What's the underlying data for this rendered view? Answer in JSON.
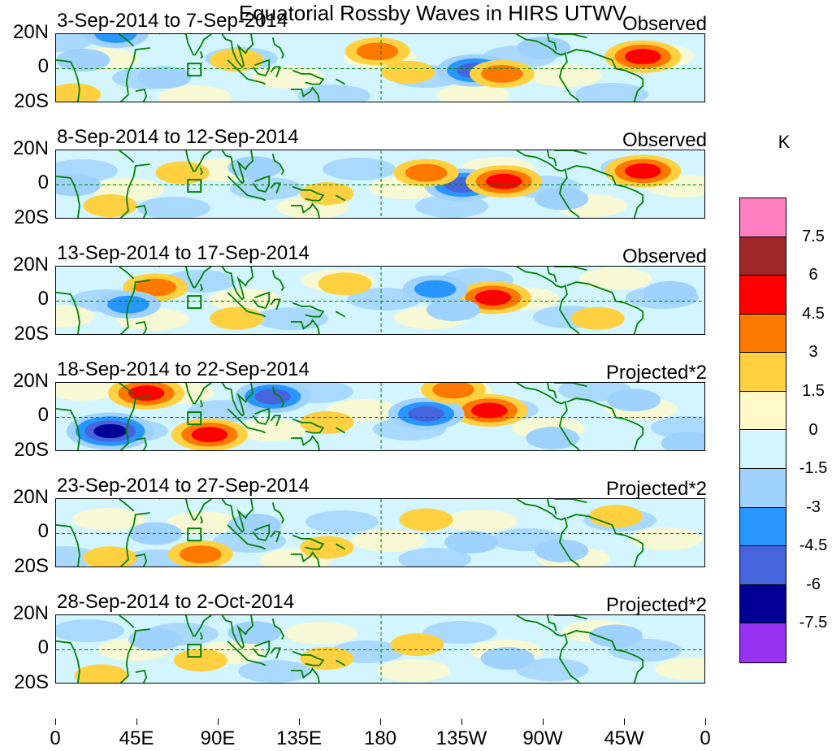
{
  "title": "Equatorial Rossby Waves in HIRS UTWV",
  "panels": [
    {
      "date": "3-Sep-2014 to 7-Sep-2014",
      "type": "Observed",
      "anomalies": [
        {
          "lon": 178,
          "lat": 10,
          "v": 3
        },
        {
          "lon": -128,
          "lat": -1,
          "v": -4.5
        },
        {
          "lon": -113,
          "lat": -3,
          "v": 3
        },
        {
          "lon": -35,
          "lat": 7,
          "v": 4.5
        },
        {
          "lon": 33,
          "lat": 20,
          "v": -3
        },
        {
          "lon": 10,
          "lat": -15,
          "v": 1.5
        },
        {
          "lon": 15,
          "lat": 5,
          "v": -1.5
        },
        {
          "lon": 100,
          "lat": 5,
          "v": 1.5
        },
        {
          "lon": -165,
          "lat": -2,
          "v": 1.5
        },
        {
          "lon": -90,
          "lat": 12,
          "v": -1.5
        },
        {
          "lon": 60,
          "lat": -5,
          "v": -1.5
        }
      ]
    },
    {
      "date": "8-Sep-2014 to 12-Sep-2014",
      "type": "Observed",
      "anomalies": [
        {
          "lon": -135,
          "lat": 0,
          "v": -4.5
        },
        {
          "lon": -112,
          "lat": 2,
          "v": 4.5
        },
        {
          "lon": -155,
          "lat": 7,
          "v": 3
        },
        {
          "lon": -35,
          "lat": 8,
          "v": 4.5
        },
        {
          "lon": 70,
          "lat": 7,
          "v": 1.5
        },
        {
          "lon": 30,
          "lat": -12,
          "v": 1.5
        },
        {
          "lon": 150,
          "lat": -5,
          "v": 1.5
        },
        {
          "lon": -80,
          "lat": -8,
          "v": -1.5
        },
        {
          "lon": 10,
          "lat": 0,
          "v": -1.5
        },
        {
          "lon": 110,
          "lat": 10,
          "v": -1.5
        }
      ]
    },
    {
      "date": "13-Sep-2014 to 17-Sep-2014",
      "type": "Observed",
      "anomalies": [
        {
          "lon": -118,
          "lat": 2,
          "v": 4.5
        },
        {
          "lon": 55,
          "lat": 8,
          "v": 3
        },
        {
          "lon": 40,
          "lat": -2,
          "v": -3
        },
        {
          "lon": -150,
          "lat": 7,
          "v": -3
        },
        {
          "lon": -140,
          "lat": -5,
          "v": -1.5
        },
        {
          "lon": 160,
          "lat": 10,
          "v": 1.5
        },
        {
          "lon": 100,
          "lat": -10,
          "v": 1.5
        },
        {
          "lon": -60,
          "lat": -10,
          "v": 1.5
        },
        {
          "lon": -20,
          "lat": 5,
          "v": -1.5
        }
      ]
    },
    {
      "date": "18-Sep-2014 to 22-Sep-2014",
      "type": "Projected*2",
      "anomalies": [
        {
          "lon": 50,
          "lat": 14,
          "v": 4.5
        },
        {
          "lon": 30,
          "lat": -8,
          "v": -6
        },
        {
          "lon": 85,
          "lat": -10,
          "v": 4.5
        },
        {
          "lon": 120,
          "lat": 12,
          "v": -4.5
        },
        {
          "lon": -120,
          "lat": 4,
          "v": 4.5
        },
        {
          "lon": -155,
          "lat": 2,
          "v": -4.5
        },
        {
          "lon": -140,
          "lat": 16,
          "v": 3
        },
        {
          "lon": 150,
          "lat": -3,
          "v": 1.5
        },
        {
          "lon": -85,
          "lat": -12,
          "v": -1.5
        },
        {
          "lon": -40,
          "lat": 10,
          "v": -1.5
        },
        {
          "lon": -10,
          "lat": -15,
          "v": -1.5
        }
      ]
    },
    {
      "date": "23-Sep-2014 to 27-Sep-2014",
      "type": "Projected*2",
      "anomalies": [
        {
          "lon": 80,
          "lat": -12,
          "v": 3
        },
        {
          "lon": 55,
          "lat": 0,
          "v": -1.5
        },
        {
          "lon": 110,
          "lat": 5,
          "v": -1.5
        },
        {
          "lon": -155,
          "lat": 8,
          "v": 1.5
        },
        {
          "lon": -130,
          "lat": -5,
          "v": -1.5
        },
        {
          "lon": 150,
          "lat": -8,
          "v": 1.5
        },
        {
          "lon": -50,
          "lat": 10,
          "v": 1.5
        },
        {
          "lon": -80,
          "lat": -10,
          "v": -1.5
        },
        {
          "lon": 30,
          "lat": -14,
          "v": 1.5
        }
      ]
    },
    {
      "date": "28-Sep-2014 to 2-Oct-2014",
      "type": "Projected*2",
      "anomalies": [
        {
          "lon": 80,
          "lat": -6,
          "v": 1.5
        },
        {
          "lon": 55,
          "lat": 6,
          "v": -1.5
        },
        {
          "lon": 110,
          "lat": 10,
          "v": -1.5
        },
        {
          "lon": 150,
          "lat": -5,
          "v": 1.5
        },
        {
          "lon": -160,
          "lat": 3,
          "v": 1.5
        },
        {
          "lon": -110,
          "lat": -5,
          "v": -1.5
        },
        {
          "lon": -50,
          "lat": 8,
          "v": -1.5
        },
        {
          "lon": 25,
          "lat": -15,
          "v": 1.5
        }
      ]
    }
  ],
  "lat_labels": [
    "20N",
    "0",
    "20S"
  ],
  "lon_labels": [
    "0",
    "45E",
    "90E",
    "135E",
    "180",
    "135W",
    "90W",
    "45W",
    "0"
  ],
  "colorbar": {
    "units": "K",
    "labels": [
      "7.5",
      "6",
      "4.5",
      "3",
      "1.5",
      "0",
      "-1.5",
      "-3",
      "-4.5",
      "-6",
      "-7.5"
    ],
    "colors": [
      "#ff80c0",
      "#a0282a",
      "#ff0000",
      "#ff7800",
      "#ffd040",
      "#fffac8",
      "#d2f5ff",
      "#a0d2ff",
      "#2896ff",
      "#4664dc",
      "#000096",
      "#9632f0"
    ]
  },
  "colors": {
    "coast": "#008200",
    "grid": "#008200",
    "frame": "#000000"
  }
}
